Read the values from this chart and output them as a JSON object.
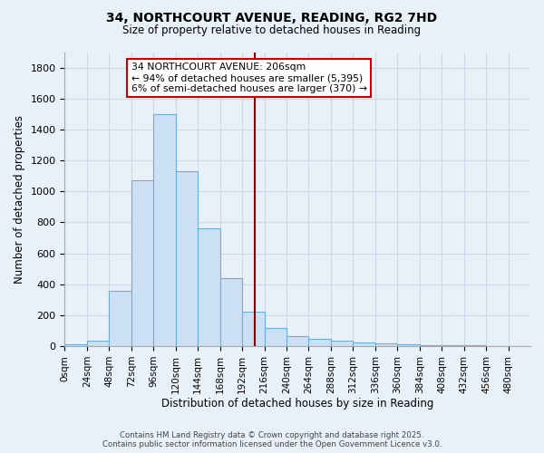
{
  "title": "34, NORTHCOURT AVENUE, READING, RG2 7HD",
  "subtitle": "Size of property relative to detached houses in Reading",
  "xlabel": "Distribution of detached houses by size in Reading",
  "ylabel": "Number of detached properties",
  "bin_edges": [
    0,
    24,
    48,
    72,
    96,
    120,
    144,
    168,
    192,
    216,
    240,
    264,
    288,
    312,
    336,
    360,
    384,
    408,
    432,
    456,
    480,
    504
  ],
  "bar_heights": [
    10,
    35,
    360,
    1070,
    1500,
    1130,
    760,
    440,
    225,
    120,
    65,
    50,
    35,
    25,
    20,
    10,
    5,
    5,
    5,
    2,
    2
  ],
  "bar_color": "#cce0f5",
  "bar_edge_color": "#6baed6",
  "vline_x": 206,
  "vline_color": "#880000",
  "annotation_title": "34 NORTHCOURT AVENUE: 206sqm",
  "annotation_line2": "← 94% of detached houses are smaller (5,395)",
  "annotation_line3": "6% of semi-detached houses are larger (370) →",
  "annotation_box_color": "#cc0000",
  "annotation_bg": "#ffffff",
  "ylim": [
    0,
    1900
  ],
  "xlim": [
    0,
    504
  ],
  "background_color": "#e8f0f8",
  "grid_color": "#d0d8e8",
  "footer_line1": "Contains HM Land Registry data © Crown copyright and database right 2025.",
  "footer_line2": "Contains public sector information licensed under the Open Government Licence v3.0.",
  "tick_labels": [
    "0sqm",
    "24sqm",
    "48sqm",
    "72sqm",
    "96sqm",
    "120sqm",
    "144sqm",
    "168sqm",
    "192sqm",
    "216sqm",
    "240sqm",
    "264sqm",
    "288sqm",
    "312sqm",
    "336sqm",
    "360sqm",
    "384sqm",
    "408sqm",
    "432sqm",
    "456sqm",
    "480sqm"
  ]
}
